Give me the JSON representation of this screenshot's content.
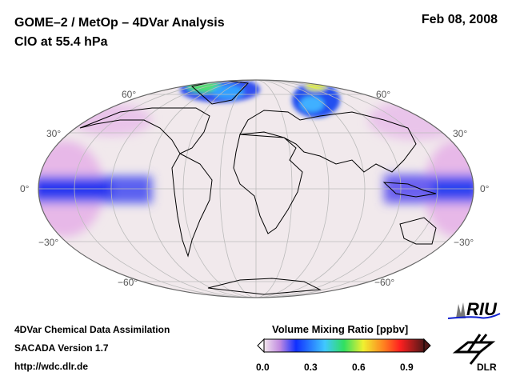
{
  "header": {
    "title_line1": "GOME–2 / MetOp – 4DVar Analysis",
    "title_line2": "ClO at 55.4 hPa",
    "date": "Feb 08, 2008"
  },
  "map": {
    "lat_labels_left": [
      "60°",
      "30°",
      "0°",
      "−30°",
      "−60°"
    ],
    "lat_labels_right": [
      "60°",
      "30°",
      "0°",
      "−30°",
      "−60°"
    ]
  },
  "footer": {
    "line1": "4DVar Chemical Data Assimilation",
    "line2": "SACADA Version 1.7",
    "line3": "http://wdc.dlr.de"
  },
  "colorbar": {
    "title": "Volume Mixing Ratio [ppbv]",
    "ticks": [
      "0.0",
      "0.3",
      "0.6",
      "0.9"
    ],
    "range": [
      0.0,
      1.0
    ],
    "colors": [
      "#f3e6ee",
      "#c08ae0",
      "#1030ff",
      "#40c8ff",
      "#30e060",
      "#f0f030",
      "#ff8020",
      "#ff2020",
      "#501818"
    ]
  },
  "logos": {
    "riu": "RIU",
    "dlr": "DLR"
  }
}
